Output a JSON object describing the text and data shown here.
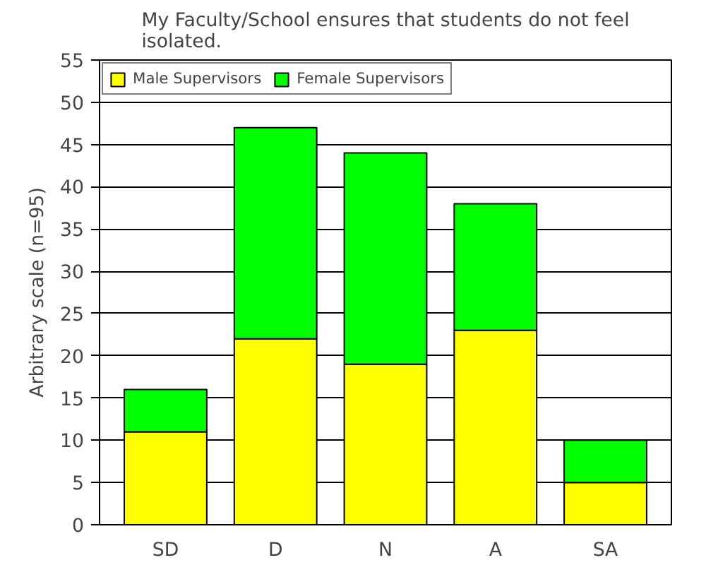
{
  "chart_data": {
    "type": "bar",
    "title": "My Faculty/School ensures that students do not feel isolated.",
    "ylabel": "Arbitrary scale (n=95)",
    "categories": [
      "SD",
      "D",
      "N",
      "A",
      "SA"
    ],
    "stacked": true,
    "series": [
      {
        "name": "Male Supervisors",
        "color": "#ffff00",
        "values": [
          11,
          22,
          19,
          23,
          5
        ]
      },
      {
        "name": "Female Supervisors",
        "color": "#00ff00",
        "values": [
          5,
          25,
          25,
          15,
          5
        ]
      }
    ],
    "ylim": [
      0,
      55
    ],
    "yticks": [
      0,
      5,
      10,
      15,
      20,
      25,
      30,
      35,
      40,
      45,
      50,
      55
    ],
    "grid": "y",
    "legend": "top left"
  }
}
